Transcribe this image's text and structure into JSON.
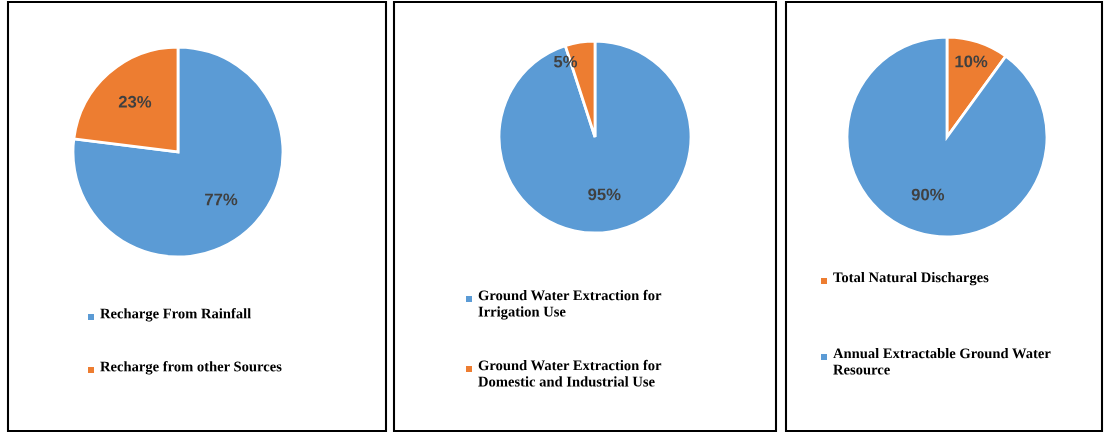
{
  "chart_data": [
    {
      "type": "pie",
      "categories": [
        "Recharge From Rainfall",
        "Recharge from other Sources"
      ],
      "values": [
        77,
        23
      ],
      "colors": [
        "#5b9bd5",
        "#ed7d31"
      ],
      "value_labels": [
        "77%",
        "23%"
      ],
      "legend": "bottom"
    },
    {
      "type": "pie",
      "categories": [
        "Ground Water Extraction for Irrigation Use",
        " Ground Water Extraction for Domestic and Industrial Use"
      ],
      "values": [
        95,
        5
      ],
      "colors": [
        "#5b9bd5",
        "#ed7d31"
      ],
      "value_labels": [
        "95%",
        "5%"
      ],
      "legend": "bottom"
    },
    {
      "type": "pie",
      "categories": [
        "Total Natural Discharges",
        "Annual Extractable Ground Water Resource"
      ],
      "values": [
        10,
        90
      ],
      "colors": [
        "#ed7d31",
        "#5b9bd5"
      ],
      "value_labels": [
        "10%",
        "90%"
      ],
      "legend": "bottom"
    }
  ]
}
